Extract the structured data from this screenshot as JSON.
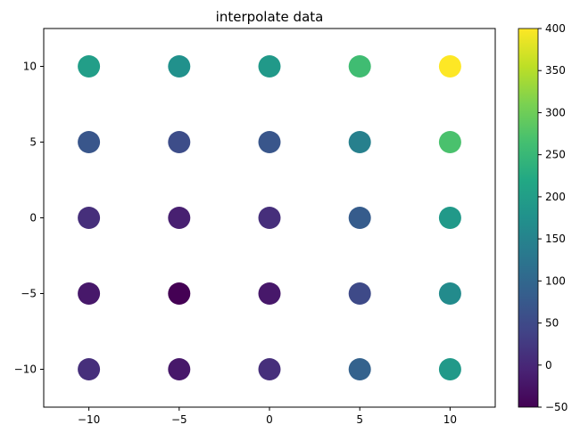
{
  "chart_data": {
    "type": "scatter",
    "title": "interpolate data",
    "xlabel": "",
    "ylabel": "",
    "xlim": [
      -12.5,
      12.5
    ],
    "ylim": [
      -12.5,
      12.5
    ],
    "x_ticks": [
      -10,
      -5,
      0,
      5,
      10
    ],
    "y_ticks": [
      -10,
      -5,
      0,
      5,
      10
    ],
    "x_tick_labels": [
      "−10",
      "−5",
      "0",
      "5",
      "10"
    ],
    "y_tick_labels": [
      "−10",
      "−5",
      "0",
      "5",
      "10"
    ],
    "grid": false,
    "colormap": "viridis",
    "colorbar": {
      "range": [
        -50,
        400
      ],
      "ticks": [
        -50,
        0,
        50,
        100,
        150,
        200,
        250,
        300,
        350,
        400
      ],
      "tick_labels": [
        "−50",
        "0",
        "50",
        "100",
        "150",
        "200",
        "250",
        "300",
        "350",
        "400"
      ]
    },
    "points": [
      {
        "x": -10,
        "y": 10,
        "value": 200
      },
      {
        "x": -5,
        "y": 10,
        "value": 175
      },
      {
        "x": 0,
        "y": 10,
        "value": 190
      },
      {
        "x": 5,
        "y": 10,
        "value": 260
      },
      {
        "x": 10,
        "y": 10,
        "value": 400
      },
      {
        "x": -10,
        "y": 5,
        "value": 70
      },
      {
        "x": -5,
        "y": 5,
        "value": 55
      },
      {
        "x": 0,
        "y": 5,
        "value": 70
      },
      {
        "x": 5,
        "y": 5,
        "value": 145
      },
      {
        "x": 10,
        "y": 5,
        "value": 270
      },
      {
        "x": -10,
        "y": 0,
        "value": 10
      },
      {
        "x": -5,
        "y": 0,
        "value": -10
      },
      {
        "x": 0,
        "y": 0,
        "value": 10
      },
      {
        "x": 5,
        "y": 0,
        "value": 80
      },
      {
        "x": 10,
        "y": 0,
        "value": 190
      },
      {
        "x": -10,
        "y": -5,
        "value": -20
      },
      {
        "x": -5,
        "y": -5,
        "value": -50
      },
      {
        "x": 0,
        "y": -5,
        "value": -20
      },
      {
        "x": 5,
        "y": -5,
        "value": 50
      },
      {
        "x": 10,
        "y": -5,
        "value": 165
      },
      {
        "x": -10,
        "y": -10,
        "value": 10
      },
      {
        "x": -5,
        "y": -10,
        "value": -20
      },
      {
        "x": 0,
        "y": -10,
        "value": 10
      },
      {
        "x": 5,
        "y": -10,
        "value": 90
      },
      {
        "x": 10,
        "y": -10,
        "value": 190
      }
    ]
  }
}
